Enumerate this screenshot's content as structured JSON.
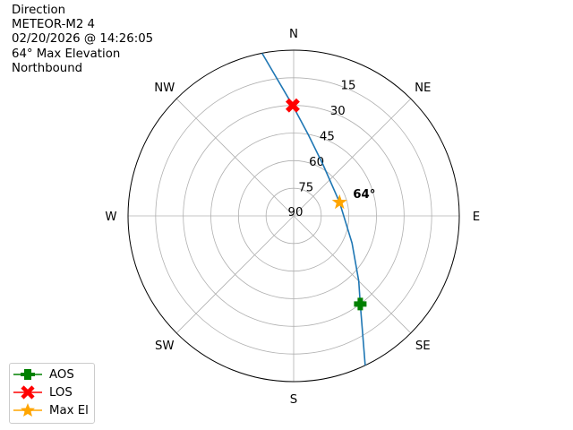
{
  "info": {
    "lines": [
      "Direction",
      "METEOR-M2 4",
      "02/20/2026 @ 14:26:05",
      "64° Max Elevation",
      "Northbound"
    ]
  },
  "chart_data": {
    "type": "polar",
    "theta_direction": "clockwise",
    "theta_zero": "N",
    "direction_labels": [
      "N",
      "NE",
      "E",
      "SE",
      "S",
      "SW",
      "W",
      "NW"
    ],
    "radial_ticks": [
      "90",
      "75",
      "60",
      "45",
      "30",
      "15"
    ],
    "rlim_elevation": [
      90,
      0
    ],
    "grid": true,
    "track": {
      "color": "#1f77b4",
      "points": [
        {
          "az": 349,
          "el": 0
        },
        {
          "az": 359.5,
          "el": 30
        },
        {
          "az": 10,
          "el": 45
        },
        {
          "az": 30,
          "el": 58
        },
        {
          "az": 73.6,
          "el": 64
        },
        {
          "az": 115,
          "el": 55
        },
        {
          "az": 135,
          "el": 40
        },
        {
          "az": 142.9,
          "el": 30
        },
        {
          "az": 154.4,
          "el": 0
        }
      ]
    },
    "markers": [
      {
        "name": "AOS",
        "az": 142.9,
        "el": 30,
        "color": "#008000",
        "shape": "plus"
      },
      {
        "name": "LOS",
        "az": 359.5,
        "el": 30,
        "color": "#ff0000",
        "shape": "x"
      },
      {
        "name": "Max El",
        "az": 73.6,
        "el": 64,
        "color": "#ffa500",
        "shape": "star"
      }
    ],
    "annotation": "64°",
    "legend_position": "lower-left"
  }
}
